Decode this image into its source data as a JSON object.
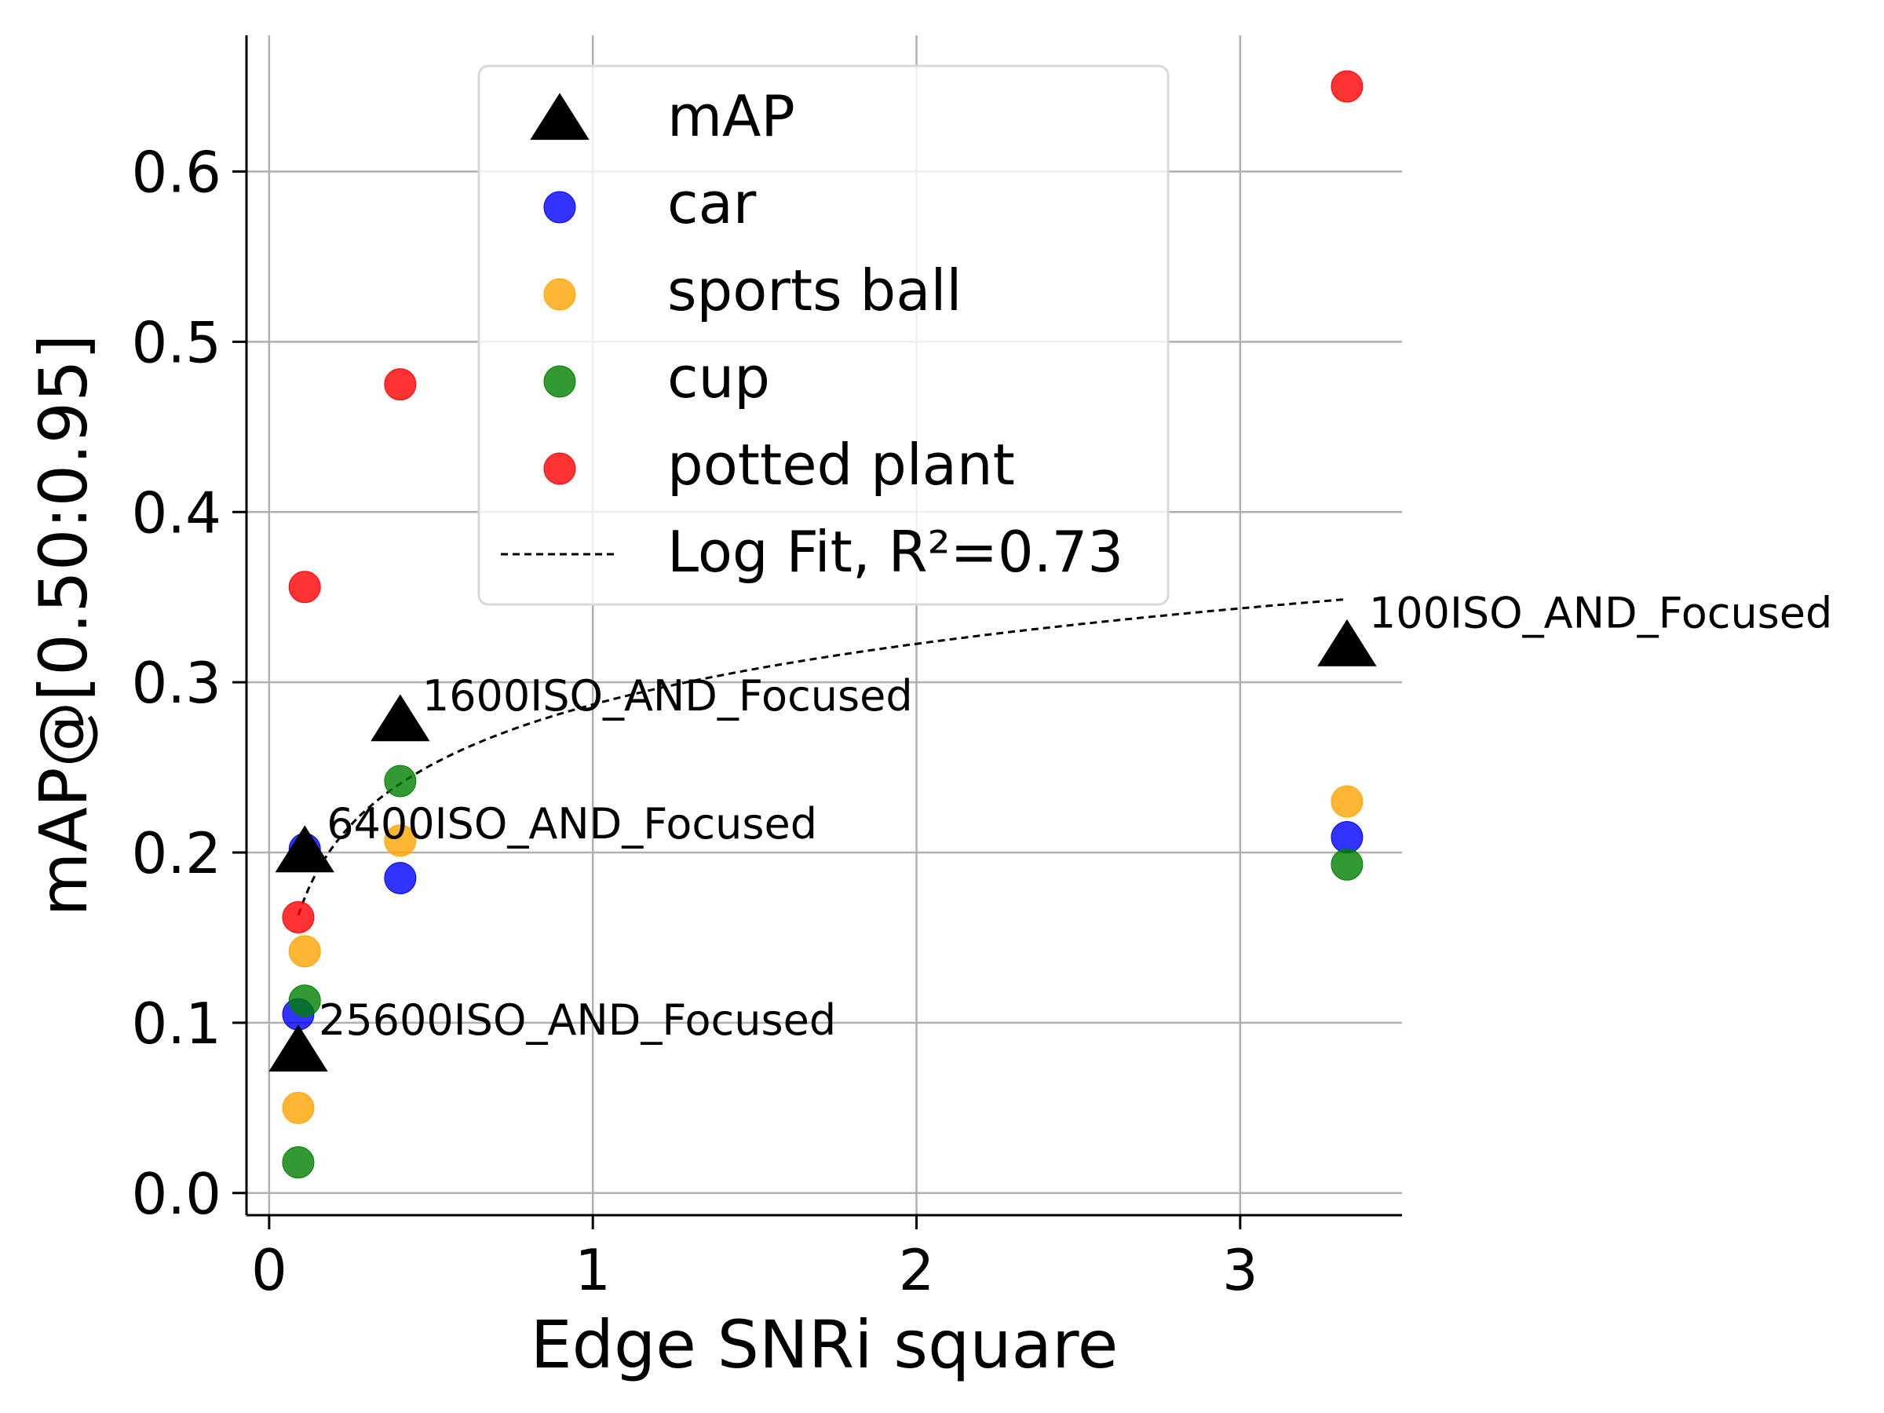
{
  "chart_data": {
    "type": "scatter",
    "title": "",
    "xlabel": "Edge SNRi square",
    "ylabel": "mAP@[0.50:0.95]",
    "xlim": [
      -0.07,
      3.5
    ],
    "ylim": [
      -0.013,
      0.68
    ],
    "x_ticks": [
      0,
      1,
      2,
      3
    ],
    "y_ticks": [
      0.0,
      0.1,
      0.2,
      0.3,
      0.4,
      0.5,
      0.6
    ],
    "grid": true,
    "legend_position": "top-center",
    "series": [
      {
        "name": "mAP",
        "marker": "triangle",
        "color": "#000000",
        "points": [
          [
            0.09,
            0.083
          ],
          [
            0.11,
            0.2
          ],
          [
            0.405,
            0.277
          ],
          [
            3.33,
            0.321
          ]
        ]
      },
      {
        "name": "car",
        "marker": "circle",
        "color": "#0000ff",
        "points": [
          [
            0.09,
            0.105
          ],
          [
            0.11,
            0.202
          ],
          [
            0.405,
            0.185
          ],
          [
            3.33,
            0.209
          ]
        ]
      },
      {
        "name": "sports ball",
        "marker": "circle",
        "color": "#ffa500",
        "points": [
          [
            0.09,
            0.05
          ],
          [
            0.11,
            0.142
          ],
          [
            0.405,
            0.207
          ],
          [
            3.33,
            0.23
          ]
        ]
      },
      {
        "name": "cup",
        "marker": "circle",
        "color": "#008000",
        "points": [
          [
            0.09,
            0.018
          ],
          [
            0.11,
            0.113
          ],
          [
            0.405,
            0.242
          ],
          [
            3.33,
            0.193
          ]
        ]
      },
      {
        "name": "potted plant",
        "marker": "circle",
        "color": "#ff0000",
        "points": [
          [
            0.09,
            0.162
          ],
          [
            0.11,
            0.356
          ],
          [
            0.405,
            0.475
          ],
          [
            3.33,
            0.65
          ]
        ]
      }
    ],
    "fit": {
      "name": "Log Fit, R²=0.73",
      "style": "dashed",
      "color": "#000000",
      "x_range": [
        0.09,
        3.33
      ],
      "points": [
        [
          0.09,
          0.15
        ],
        [
          0.405,
          0.265
        ],
        [
          1.0,
          0.286
        ],
        [
          2.0,
          0.317
        ],
        [
          3.33,
          0.344
        ]
      ]
    },
    "annotations": [
      {
        "text": "25600ISO_AND_Focused",
        "x": 0.09,
        "y": 0.083
      },
      {
        "text": "6400ISO_AND_Focused",
        "x": 0.11,
        "y": 0.2
      },
      {
        "text": "1600ISO_AND_Focused",
        "x": 0.405,
        "y": 0.277
      },
      {
        "text": "100ISO_AND_Focused",
        "x": 3.33,
        "y": 0.321
      }
    ]
  }
}
